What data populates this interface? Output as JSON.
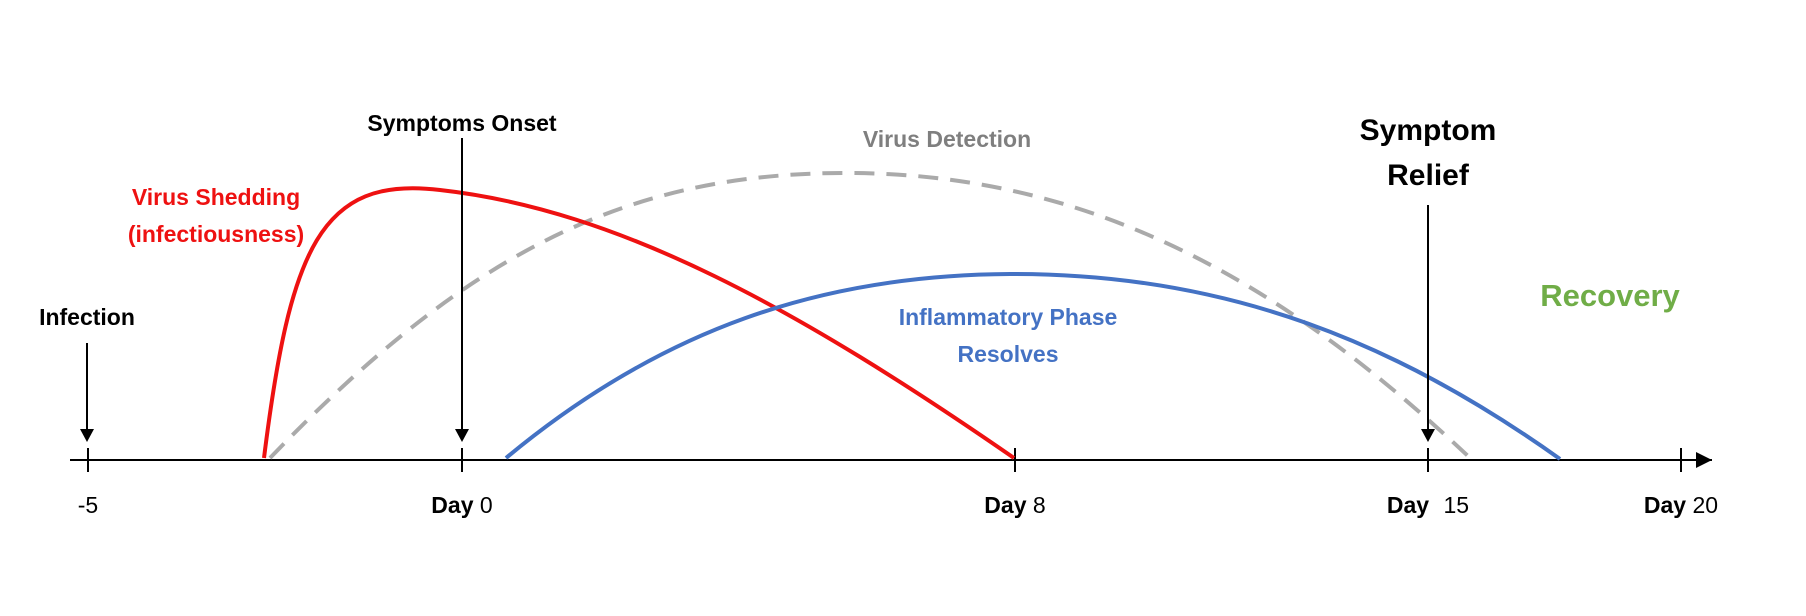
{
  "axis": {
    "ticks": [
      {
        "id": "m5",
        "prefix": "",
        "value": "-5"
      },
      {
        "id": "d0",
        "prefix": "Day",
        "value": "0"
      },
      {
        "id": "d8",
        "prefix": "Day",
        "value": "8"
      },
      {
        "id": "d15",
        "prefix": "Day",
        "value": "15"
      },
      {
        "id": "d20",
        "prefix": "Day",
        "value": "20"
      }
    ]
  },
  "events": {
    "infection": "Infection",
    "symptoms_onset": "Symptoms Onset",
    "symptom_relief_line1": "Symptom",
    "symptom_relief_line2": "Relief",
    "recovery": "Recovery"
  },
  "curves": {
    "virus_shedding_line1": "Virus Shedding",
    "virus_shedding_line2": "(infectiousness)",
    "virus_detection": "Virus Detection",
    "inflammatory_line1": "Inflammatory Phase",
    "inflammatory_line2": "Resolves"
  },
  "colors": {
    "shedding": "#ee1111",
    "detection": "#aaaaaa",
    "detection_label": "#7f7f7f",
    "inflammatory": "#4472c4",
    "recovery": "#70ad47",
    "axis": "#000000"
  }
}
